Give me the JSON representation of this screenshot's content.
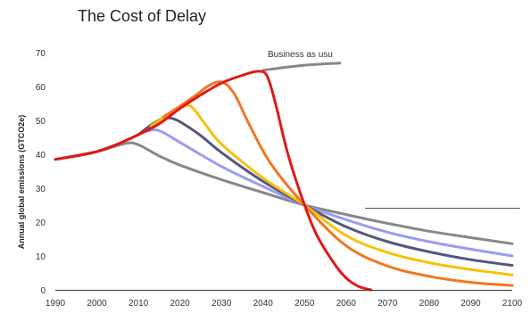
{
  "chart_data": {
    "type": "line",
    "title": "The Cost of Delay",
    "xlabel": "",
    "ylabel": "Annual global emissions (GTCO2e)",
    "xlim": [
      1990,
      2100
    ],
    "ylim": [
      0,
      70
    ],
    "xticks": [
      "1990",
      "2000",
      "2010",
      "2020",
      "2030",
      "2040",
      "2050",
      "2060",
      "2070",
      "2080",
      "2090",
      "2100"
    ],
    "yticks": [
      "0",
      "10",
      "20",
      "30",
      "40",
      "50",
      "60",
      "70"
    ],
    "grid": false,
    "annotation": "Business as usu",
    "series": [
      {
        "name": "Business as usu",
        "color": "#888888",
        "x": [
          2040,
          2050,
          2060,
          2063
        ],
        "y": [
          64.8,
          66.3,
          67.0,
          67.2
        ]
      },
      {
        "color": "#888888",
        "x": [
          1990,
          2000,
          2007,
          2010,
          2015,
          2020,
          2030,
          2040,
          2050,
          2060,
          2070,
          2080,
          2090,
          2100
        ],
        "y": [
          38.5,
          40.8,
          43.2,
          42.8,
          39.5,
          36.8,
          32.5,
          28.7,
          25.0,
          22.2,
          19.6,
          17.3,
          15.4,
          13.6
        ]
      },
      {
        "color": "#9a9cf0",
        "x": [
          2000,
          2005,
          2010,
          2012,
          2015,
          2020,
          2030,
          2040,
          2050,
          2060,
          2070,
          2080,
          2090,
          2100
        ],
        "y": [
          40.8,
          43.0,
          45.8,
          46.8,
          47.0,
          43.5,
          36.4,
          30.5,
          25.0,
          20.7,
          17.0,
          14.2,
          12.0,
          10.0
        ]
      },
      {
        "color": "#56567e",
        "x": [
          2010,
          2013,
          2016,
          2018,
          2020,
          2025,
          2030,
          2040,
          2050,
          2060,
          2070,
          2080,
          2090,
          2100
        ],
        "y": [
          45.8,
          48.6,
          50.6,
          50.6,
          49.6,
          45.5,
          40.5,
          32.0,
          25.0,
          18.6,
          14.2,
          11.2,
          8.9,
          7.2
        ]
      },
      {
        "color": "#f5c20a",
        "x": [
          2013,
          2018,
          2021,
          2023,
          2026,
          2030,
          2040,
          2050,
          2060,
          2070,
          2080,
          2090,
          2100
        ],
        "y": [
          48.3,
          52.3,
          54.3,
          53.8,
          49.0,
          43.0,
          33.0,
          25.0,
          16.0,
          11.0,
          8.0,
          6.0,
          4.4
        ]
      },
      {
        "color": "#f07820",
        "x": [
          2016,
          2020,
          2024,
          2027,
          2030,
          2033,
          2037,
          2042,
          2050,
          2060,
          2070,
          2080,
          2090,
          2100
        ],
        "y": [
          51.0,
          54.2,
          57.6,
          60.3,
          61.3,
          58.0,
          48.0,
          37.0,
          25.0,
          13.0,
          7.0,
          4.0,
          2.2,
          1.3
        ]
      },
      {
        "color": "#e01818",
        "x": [
          1990,
          1995,
          2000,
          2005,
          2010,
          2015,
          2020,
          2025,
          2030,
          2035,
          2039,
          2041,
          2043,
          2046,
          2050,
          2053,
          2057,
          2060,
          2063,
          2066
        ],
        "y": [
          38.5,
          39.5,
          40.8,
          43.0,
          45.8,
          49.0,
          53.5,
          57.5,
          61.0,
          63.3,
          64.5,
          63.0,
          55.0,
          40.0,
          25.0,
          16.0,
          8.0,
          3.5,
          1.0,
          0.0
        ]
      }
    ]
  }
}
